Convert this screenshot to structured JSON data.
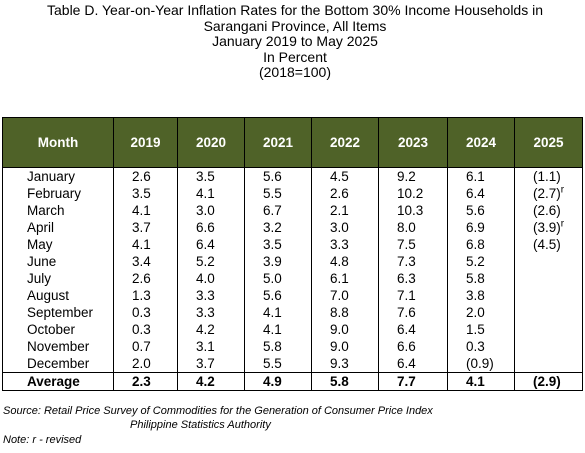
{
  "header": {
    "lines": [
      "Table D. Year-on-Year Inflation Rates for the Bottom 30% Income Households in",
      "Sarangani Province, All Items",
      "January 2019 to May 2025",
      "In Percent",
      "(2018=100)"
    ]
  },
  "table": {
    "columns": [
      "Month",
      "2019",
      "2020",
      "2021",
      "2022",
      "2023",
      "2024",
      "2025"
    ],
    "rows": [
      [
        "January",
        "2.6",
        "3.5",
        "5.6",
        "4.5",
        "9.2",
        "6.1",
        "(1.1)"
      ],
      [
        "February",
        "3.5",
        "4.1",
        "5.5",
        "2.6",
        "10.2",
        "6.4",
        {
          "text": "(2.7)",
          "sup": "r"
        }
      ],
      [
        "March",
        "4.1",
        "3.0",
        "6.7",
        "2.1",
        "10.3",
        "5.6",
        "(2.6)"
      ],
      [
        "April",
        "3.7",
        "6.6",
        "3.2",
        "3.0",
        "8.0",
        "6.9",
        {
          "text": "(3.9)",
          "sup": "r"
        }
      ],
      [
        "May",
        "4.1",
        "6.4",
        "3.5",
        "3.3",
        "7.5",
        "6.8",
        "(4.5)"
      ],
      [
        "June",
        "3.4",
        "5.2",
        "3.9",
        "4.8",
        "7.3",
        "5.2"
      ],
      [
        "July",
        "2.6",
        "4.0",
        "5.0",
        "6.1",
        "6.3",
        "5.8"
      ],
      [
        "August",
        "1.3",
        "3.3",
        "5.6",
        "7.0",
        "7.1",
        "3.8"
      ],
      [
        "September",
        "0.3",
        "3.3",
        "4.1",
        "8.8",
        "7.6",
        "2.0"
      ],
      [
        "October",
        "0.3",
        "4.2",
        "4.1",
        "9.0",
        "6.4",
        "1.5"
      ],
      [
        "November",
        "0.7",
        "3.1",
        "5.8",
        "9.0",
        "6.6",
        "0.3"
      ],
      [
        "December",
        "2.0",
        "3.7",
        "5.5",
        "9.3",
        "6.4",
        "(0.9)"
      ]
    ],
    "average": [
      "Average",
      "2.3",
      "4.2",
      "4.9",
      "5.8",
      "7.7",
      "4.1",
      "(2.9)"
    ]
  },
  "footer": {
    "source": "Source: Retail Price Survey of Commodities for the Generation of Consumer Price Index",
    "agency": "Philippine Statistics Authority",
    "note": "Note: r - revised"
  }
}
